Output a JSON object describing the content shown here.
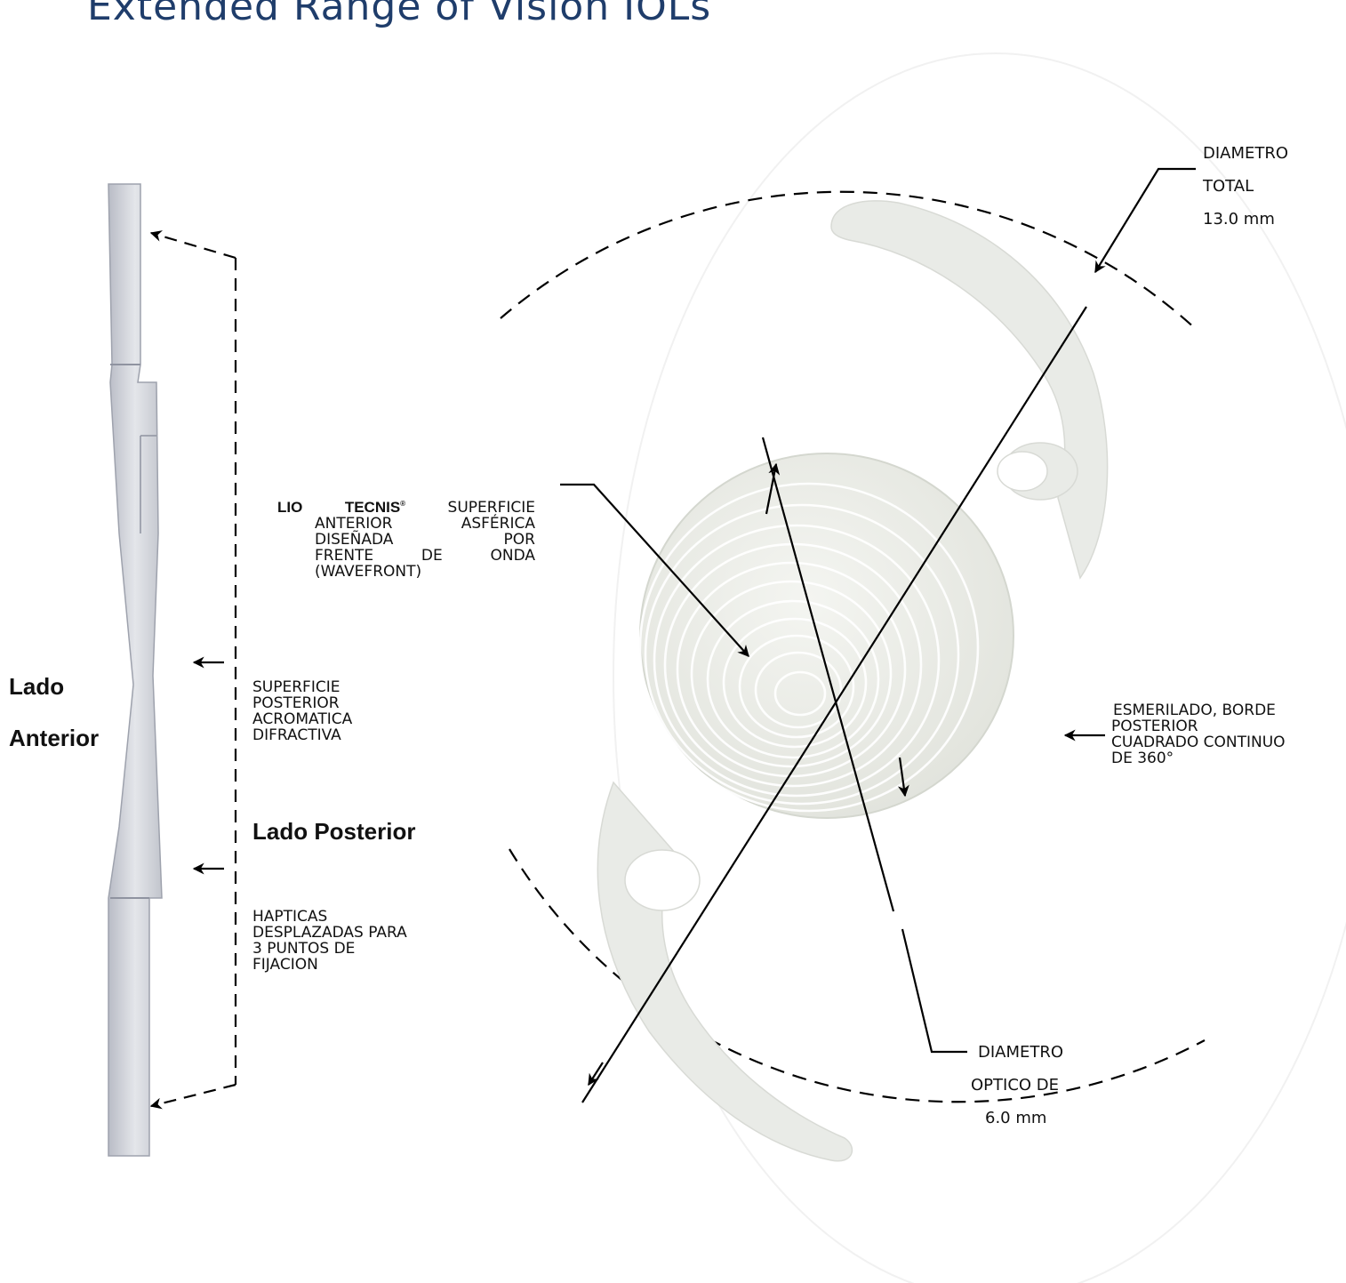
{
  "header": {
    "title": "Extended Range of Vision IOLs"
  },
  "side_labels": {
    "anterior_line1": "Lado",
    "anterior_line2": "Anterior",
    "posterior": "Lado Posterior"
  },
  "callouts": {
    "tecnis": {
      "prefix": "LIO",
      "brand": "TECNIS",
      "mark": "®",
      "line1_rest": "SUPERFICIE",
      "line2": "ANTERIOR ASFÉRICA",
      "line3": "DISEÑADA POR",
      "line4": "FRENTE DE ONDA",
      "line5": "(WAVEFRONT)"
    },
    "posterior_surface": {
      "line1": "SUPERFICIE",
      "line2": "POSTERIOR",
      "line3": "ACROMATICA",
      "line4": "DIFRACTIVA"
    },
    "haptics": {
      "line1": "HAPTICAS",
      "line2": "DESPLAZADAS PARA",
      "line3": "3 PUNTOS DE",
      "line4": "FIJACION"
    },
    "total_diameter": {
      "line1": "DIAMETRO",
      "line2": "TOTAL",
      "line3": "13.0 mm"
    },
    "optic_diameter": {
      "line1": "DIAMETRO",
      "line2": "OPTICO DE",
      "line3": "6.0 mm"
    },
    "edge": {
      "line1": "ESMERILADO, BORDE",
      "line2": "POSTERIOR",
      "line3": "CUADRADO CONTINUO",
      "line4": "DE 360°"
    }
  },
  "colors": {
    "title": "#1f3d6b",
    "lens": "#eef0ea",
    "lens_groove": "#ffffff",
    "haptic": "#e8eae6",
    "profile": "#c9ccd3",
    "line": "#000000"
  }
}
